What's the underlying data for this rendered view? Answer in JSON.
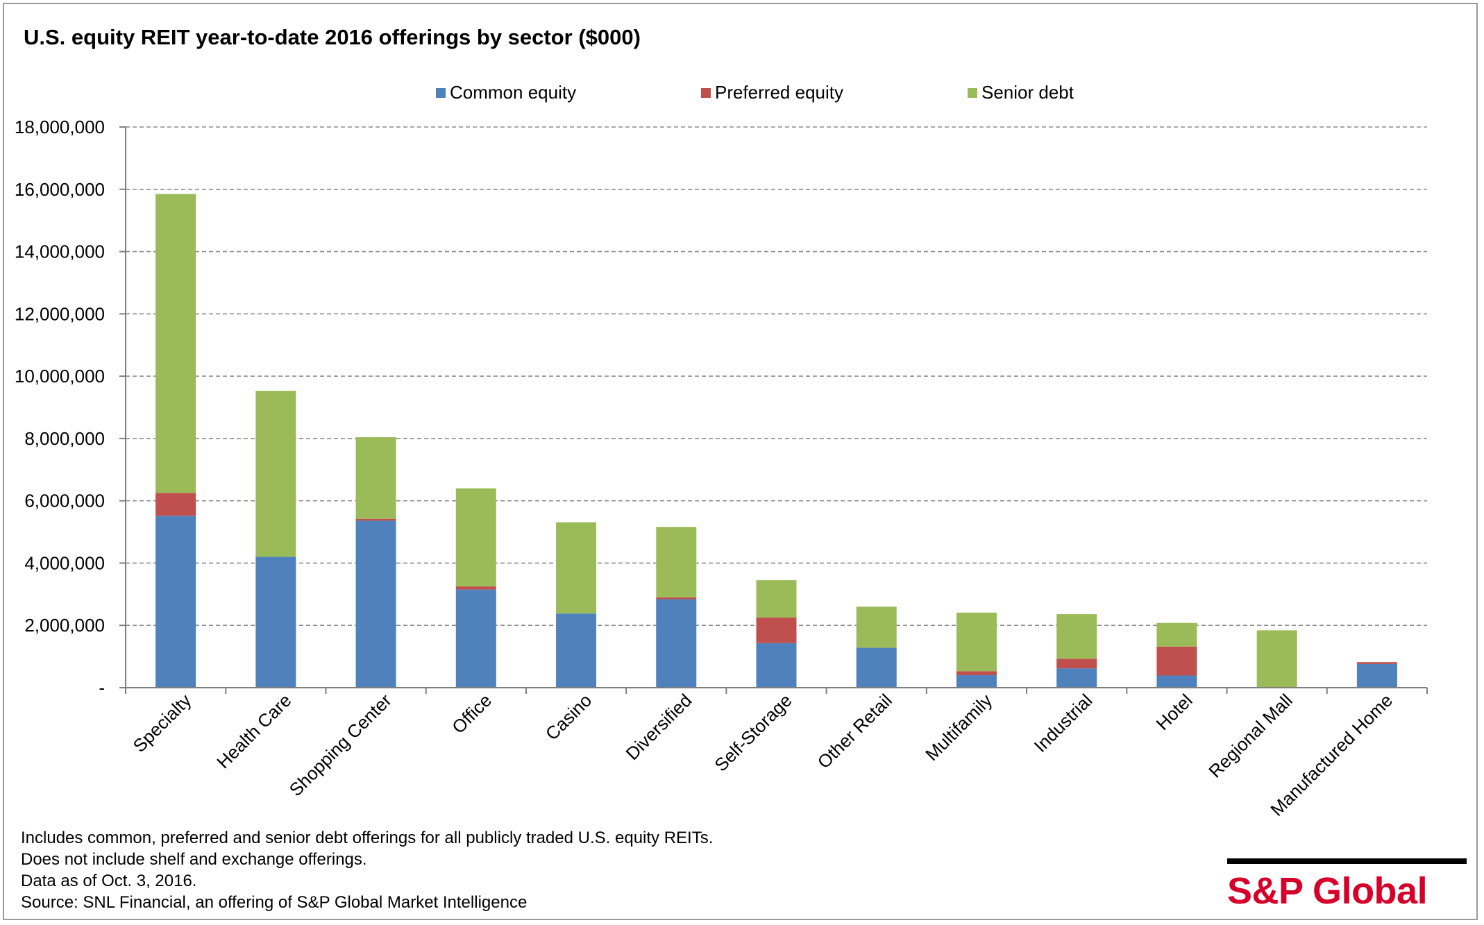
{
  "chart_data": {
    "type": "bar",
    "stacked": true,
    "title": "U.S. equity REIT year-to-date 2016 offerings by sector ($000)",
    "categories": [
      "Specialty",
      "Health Care",
      "Shopping Center",
      "Office",
      "Casino",
      "Diversified",
      "Self-Storage",
      "Other Retail",
      "Multifamily",
      "Industrial",
      "Hotel",
      "Regional Mall",
      "Manufactured Home"
    ],
    "series": [
      {
        "name": "Common equity",
        "color": "#4f81bd",
        "values": [
          5520000,
          4200000,
          5360000,
          3150000,
          2380000,
          2840000,
          1430000,
          1280000,
          400000,
          620000,
          390000,
          0,
          760000
        ]
      },
      {
        "name": "Preferred equity",
        "color": "#c0504d",
        "values": [
          730000,
          0,
          60000,
          100000,
          0,
          60000,
          820000,
          0,
          130000,
          310000,
          930000,
          0,
          60000
        ]
      },
      {
        "name": "Senior debt",
        "color": "#9bbb59",
        "values": [
          9600000,
          5330000,
          2620000,
          3150000,
          2930000,
          2260000,
          1200000,
          1320000,
          1880000,
          1430000,
          760000,
          1840000,
          0
        ]
      }
    ],
    "ylim": [
      0,
      18000000
    ],
    "yticks": [
      0,
      2000000,
      4000000,
      6000000,
      8000000,
      10000000,
      12000000,
      14000000,
      16000000,
      18000000
    ],
    "ytick_labels": [
      "-",
      "2,000,000",
      "4,000,000",
      "6,000,000",
      "8,000,000",
      "10,000,000",
      "12,000,000",
      "14,000,000",
      "16,000,000",
      "18,000,000"
    ],
    "grid": true,
    "legend_position": "top",
    "xlabel": "",
    "ylabel": ""
  },
  "notes": [
    "Includes common, preferred and senior debt offerings for all publicly traded U.S. equity REITs.",
    "Does not include shelf and exchange offerings.",
    "Data as of Oct. 3, 2016.",
    "Source: SNL Financial, an offering of S&P Global Market Intelligence"
  ],
  "brand": {
    "name": "S&P Global",
    "color": "#d6002a"
  }
}
